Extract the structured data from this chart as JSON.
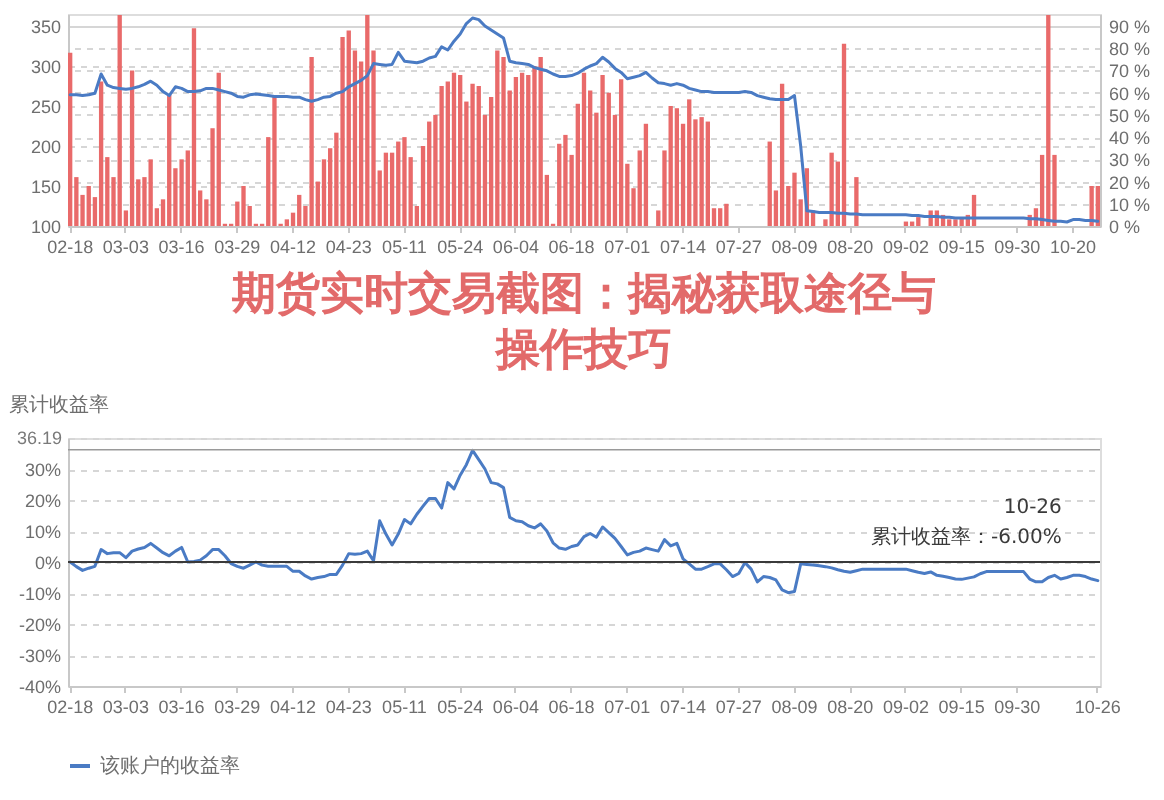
{
  "chart_data": [
    {
      "type": "bar",
      "categories": [
        "02-18",
        null,
        null,
        null,
        null,
        null,
        null,
        null,
        null,
        "03-03",
        null,
        null,
        null,
        null,
        null,
        null,
        null,
        null,
        "03-16",
        null,
        null,
        null,
        null,
        null,
        null,
        null,
        null,
        "03-29",
        null,
        null,
        null,
        null,
        null,
        null,
        null,
        null,
        "04-12",
        null,
        null,
        null,
        null,
        null,
        null,
        null,
        null,
        "04-23",
        null,
        null,
        null,
        null,
        null,
        null,
        null,
        null,
        "05-11",
        null,
        null,
        null,
        null,
        null,
        null,
        null,
        null,
        "05-24",
        null,
        null,
        null,
        null,
        null,
        null,
        null,
        null,
        "06-04",
        null,
        null,
        null,
        null,
        null,
        null,
        null,
        null,
        "06-18",
        null,
        null,
        null,
        null,
        null,
        null,
        null,
        null,
        "07-01",
        null,
        null,
        null,
        null,
        null,
        null,
        null,
        null,
        "07-14",
        null,
        null,
        null,
        null,
        null,
        null,
        null,
        null,
        "07-27",
        null,
        null,
        null,
        null,
        null,
        null,
        null,
        null,
        "08-09",
        null,
        null,
        null,
        null,
        null,
        null,
        null,
        null,
        "08-20",
        null,
        null,
        null,
        null,
        null,
        null,
        null,
        null,
        "09-02",
        null,
        null,
        null,
        null,
        null,
        null,
        null,
        null,
        "09-15",
        null,
        null,
        null,
        null,
        null,
        null,
        null,
        null,
        "09-30",
        null,
        null,
        null,
        null,
        null,
        null,
        null,
        null,
        "10-20",
        null,
        null,
        null,
        null
      ],
      "series": [
        {
          "type": "bar",
          "axis": "y2",
          "color": "#e96a6a",
          "values": [
            78,
            22,
            14,
            18,
            13,
            65,
            31,
            22,
            95,
            7,
            70,
            21,
            22,
            30,
            8,
            12,
            59,
            26,
            30,
            34,
            89,
            16,
            12,
            44,
            69,
            1,
            1,
            11,
            18,
            9,
            1,
            1,
            40,
            58,
            1,
            3,
            6,
            14,
            9,
            76,
            20,
            30,
            35,
            42,
            85,
            88,
            79,
            74,
            95,
            79,
            25,
            33,
            33,
            38,
            40,
            31,
            9,
            36,
            47,
            50,
            63,
            65,
            69,
            68,
            56,
            64,
            63,
            50,
            58,
            79,
            76,
            61,
            67,
            69,
            68,
            72,
            76,
            23,
            1,
            37,
            41,
            32,
            55,
            69,
            61,
            51,
            68,
            60,
            50,
            66,
            28,
            17,
            34,
            46,
            0,
            7,
            34,
            54,
            53,
            46,
            57,
            48,
            49,
            47,
            8,
            8,
            10,
            0,
            0,
            0,
            0,
            0,
            0,
            38,
            16,
            64,
            18,
            24,
            12,
            26,
            7,
            0,
            3,
            33,
            29,
            82,
            0,
            22,
            0,
            0,
            0,
            0,
            0,
            0,
            0,
            2,
            2,
            4,
            0,
            7,
            7,
            5,
            3,
            3,
            4,
            5,
            14,
            0,
            0,
            0,
            0,
            0,
            0,
            0,
            0,
            5,
            8,
            32,
            95,
            32,
            0,
            0,
            0,
            0,
            0,
            18,
            18
          ]
        },
        {
          "type": "line",
          "color": "#4a7bc4",
          "values": [
            264,
            264,
            263,
            264,
            266,
            290,
            276,
            273,
            272,
            271,
            272,
            274,
            277,
            281,
            276,
            268,
            263,
            274,
            272,
            268,
            268,
            269,
            272,
            272,
            270,
            268,
            266,
            262,
            261,
            264,
            265,
            264,
            263,
            262,
            262,
            262,
            261,
            261,
            258,
            256,
            258,
            261,
            262,
            266,
            268,
            274,
            278,
            282,
            288,
            303,
            302,
            301,
            302,
            317,
            306,
            305,
            304,
            306,
            310,
            312,
            324,
            320,
            331,
            340,
            353,
            360,
            358,
            350,
            345,
            340,
            335,
            306,
            304,
            303,
            302,
            298,
            296,
            294,
            290,
            287,
            287,
            288,
            291,
            296,
            300,
            303,
            311,
            305,
            297,
            292,
            284,
            286,
            288,
            292,
            285,
            279,
            278,
            276,
            278,
            276,
            272,
            270,
            268,
            268,
            267,
            267,
            267,
            267,
            267,
            268,
            267,
            263,
            261,
            259,
            258,
            258,
            258,
            263,
            200,
            119,
            118,
            117,
            117,
            117,
            116,
            116,
            115,
            115,
            114,
            114,
            114,
            114,
            114,
            114,
            114,
            114,
            113,
            113,
            112,
            112,
            112,
            111,
            111,
            110,
            110,
            110,
            110,
            110,
            110,
            110,
            110,
            110,
            110,
            110,
            110,
            109,
            109,
            108,
            107,
            106,
            106,
            105,
            108,
            108,
            107,
            107,
            106
          ]
        }
      ],
      "ylim": [
        100,
        365
      ],
      "yticks": [
        100,
        150,
        200,
        250,
        300,
        350
      ],
      "y2lim": [
        0,
        95.4
      ],
      "y2ticks": [
        {
          "value": 0,
          "label": "0 %"
        },
        {
          "value": 10,
          "label": "10 %"
        },
        {
          "value": 20,
          "label": "20 %"
        },
        {
          "value": 30,
          "label": "30 %"
        },
        {
          "value": 40,
          "label": "40 %"
        },
        {
          "value": 50,
          "label": "50 %"
        },
        {
          "value": 60,
          "label": "60 %"
        },
        {
          "value": 70,
          "label": "70 %"
        },
        {
          "value": 80,
          "label": "80 %"
        },
        {
          "value": 90,
          "label": "90 %"
        }
      ],
      "grid": "y"
    },
    {
      "type": "line",
      "title": "期货实时交易截图：揭秘获取途径与操作技巧",
      "ylabel": "累计收益率",
      "categories": [
        "02-18",
        null,
        null,
        null,
        null,
        null,
        null,
        null,
        null,
        "03-03",
        null,
        null,
        null,
        null,
        null,
        null,
        null,
        null,
        "03-16",
        null,
        null,
        null,
        null,
        null,
        null,
        null,
        null,
        "03-29",
        null,
        null,
        null,
        null,
        null,
        null,
        null,
        null,
        "04-12",
        null,
        null,
        null,
        null,
        null,
        null,
        null,
        null,
        "04-23",
        null,
        null,
        null,
        null,
        null,
        null,
        null,
        null,
        "05-11",
        null,
        null,
        null,
        null,
        null,
        null,
        null,
        null,
        "05-24",
        null,
        null,
        null,
        null,
        null,
        null,
        null,
        null,
        "06-04",
        null,
        null,
        null,
        null,
        null,
        null,
        null,
        null,
        "06-18",
        null,
        null,
        null,
        null,
        null,
        null,
        null,
        null,
        "07-01",
        null,
        null,
        null,
        null,
        null,
        null,
        null,
        null,
        "07-14",
        null,
        null,
        null,
        null,
        null,
        null,
        null,
        null,
        "07-27",
        null,
        null,
        null,
        null,
        null,
        null,
        null,
        null,
        "08-09",
        null,
        null,
        null,
        null,
        null,
        null,
        null,
        null,
        "08-20",
        null,
        null,
        null,
        null,
        null,
        null,
        null,
        null,
        "09-02",
        null,
        null,
        null,
        null,
        null,
        null,
        null,
        null,
        "09-15",
        null,
        null,
        null,
        null,
        null,
        null,
        null,
        null,
        "09-30",
        null,
        null,
        null,
        null,
        null,
        null,
        null,
        null,
        null,
        null,
        null,
        null,
        "10-26"
      ],
      "series": [
        {
          "name": "该账户的收益率",
          "color": "#4a7bc4",
          "values": [
            0,
            -1.5,
            -2.7,
            -2,
            -1.4,
            4,
            2.7,
            3,
            3,
            1.4,
            3.5,
            4.2,
            4.7,
            6,
            4.5,
            3,
            2,
            3.5,
            4.7,
            0,
            0.2,
            0.6,
            2,
            4,
            4,
            2,
            -0.5,
            -1.4,
            -2,
            -1,
            0,
            -1,
            -1.4,
            -1.4,
            -1.4,
            -1.4,
            -3,
            -3,
            -4.5,
            -5.5,
            -5,
            -4.7,
            -4,
            -4,
            -1,
            2.7,
            2.5,
            2.7,
            3.5,
            0.4,
            13.3,
            9,
            5.5,
            9,
            13.7,
            12.3,
            15.4,
            18,
            20.5,
            20.5,
            17.4,
            25.6,
            23.6,
            28,
            31.4,
            36,
            33,
            30,
            25.6,
            25.2,
            24,
            14.4,
            13.3,
            13,
            11.7,
            11,
            12.3,
            10,
            6.2,
            4.5,
            4.1,
            5,
            5.5,
            8.2,
            9.2,
            8,
            11.3,
            9.5,
            7.6,
            5,
            2.3,
            3.1,
            3.5,
            4.5,
            4,
            3.5,
            7.2,
            5.2,
            6,
            1,
            -0.6,
            -2.3,
            -2.3,
            -1.5,
            -0.6,
            -0.6,
            -2.5,
            -4.7,
            -3.7,
            -0.2,
            -2.3,
            -6.4,
            -4.7,
            -5,
            -5.8,
            -9,
            -9.9,
            -9.5,
            -0.6,
            -0.8,
            -1,
            -1.2,
            -1.5,
            -1.9,
            -2.5,
            -3,
            -3.3,
            -2.8,
            -2.3,
            -2.3,
            -2.3,
            -2.3,
            -2.3,
            -2.3,
            -2.3,
            -2.3,
            -2.8,
            -3.3,
            -3.7,
            -3.2,
            -4.3,
            -4.6,
            -5,
            -5.5,
            -5.6,
            -5.2,
            -4.8,
            -3.8,
            -3.1,
            -3.1,
            -3.1,
            -3.1,
            -3.1,
            -3.1,
            -3.1,
            -5.5,
            -6.4,
            -6.4,
            -5,
            -4.3,
            -5.5,
            -5,
            -4.3,
            -4.3,
            -4.7,
            -5.5,
            -6
          ]
        }
      ],
      "ylim": [
        -40,
        40
      ],
      "yticks": [
        {
          "value": -40,
          "label": "-40%"
        },
        {
          "value": -30,
          "label": "-30%"
        },
        {
          "value": -20,
          "label": "-20%"
        },
        {
          "value": -10,
          "label": "-10%"
        },
        {
          "value": 0,
          "label": "0%"
        },
        {
          "value": 10,
          "label": "10%"
        },
        {
          "value": 20,
          "label": "20%"
        },
        {
          "value": 30,
          "label": "30%"
        },
        {
          "value": 40,
          "label": null
        }
      ],
      "grid": "y",
      "legend": "bottom",
      "ref_lines": [
        {
          "axis": "y",
          "value": 36.19,
          "label": "36.19"
        }
      ],
      "annotations": [
        {
          "text": "10-26\n累计收益率：-6.00%",
          "x": "10-26",
          "y": -6
        }
      ]
    }
  ]
}
